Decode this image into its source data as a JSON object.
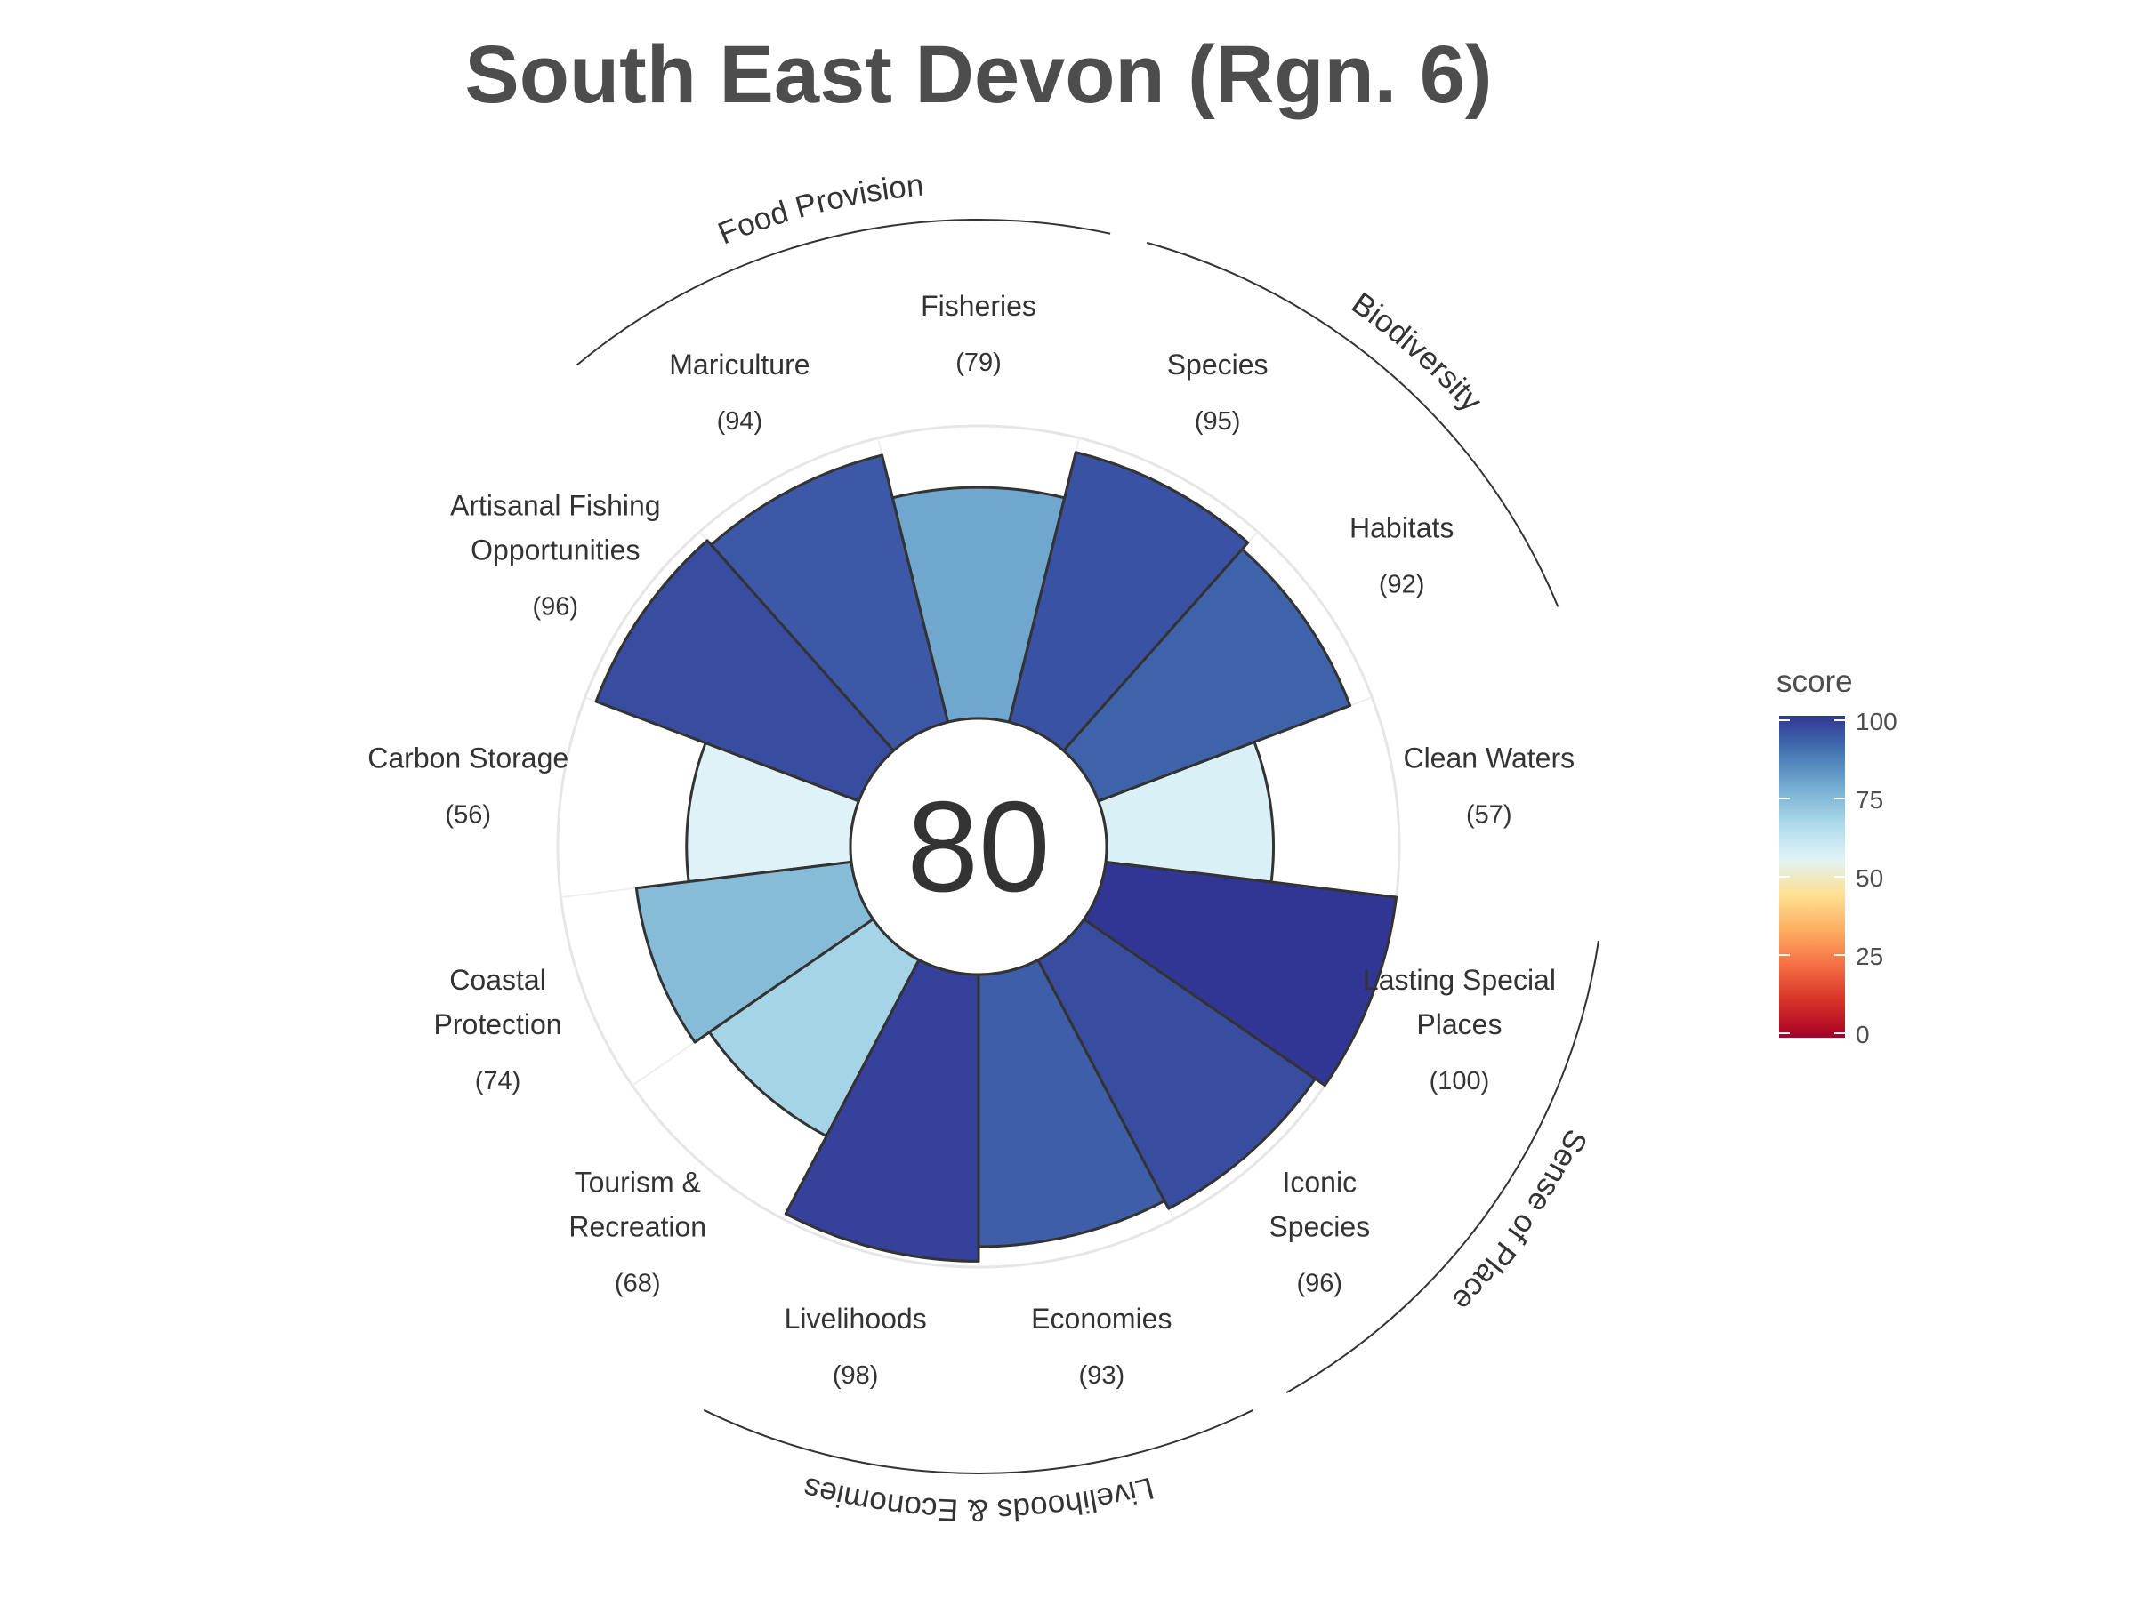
{
  "chart_data": {
    "type": "rose",
    "title": "South East Devon (Rgn. 6)",
    "overall_score": "80",
    "max_score": 100,
    "rlim": [
      0,
      100
    ],
    "grid": true,
    "petals": [
      {
        "label": "Fisheries",
        "score": 79,
        "goal": "Food Provision"
      },
      {
        "label": "Mariculture",
        "score": 94,
        "goal": "Food Provision"
      },
      {
        "label": "Artisanal Fishing Opportunities",
        "score": 96,
        "goal": ""
      },
      {
        "label": "Carbon Storage",
        "score": 56,
        "goal": ""
      },
      {
        "label": "Coastal Protection",
        "score": 74,
        "goal": ""
      },
      {
        "label": "Tourism & Recreation",
        "score": 68,
        "goal": ""
      },
      {
        "label": "Livelihoods",
        "score": 98,
        "goal": "Livelihoods & Economies"
      },
      {
        "label": "Economies",
        "score": 93,
        "goal": "Livelihoods & Economies"
      },
      {
        "label": "Iconic Species",
        "score": 96,
        "goal": "Sense of Place"
      },
      {
        "label": "Lasting Special Places",
        "score": 100,
        "goal": "Sense of Place"
      },
      {
        "label": "Clean Waters",
        "score": 57,
        "goal": ""
      },
      {
        "label": "Habitats",
        "score": 92,
        "goal": "Biodiversity"
      },
      {
        "label": "Species",
        "score": 95,
        "goal": "Biodiversity"
      }
    ],
    "goal_labels": [
      "Food Provision",
      "Biodiversity",
      "Sense of Place",
      "Livelihoods & Economies"
    ],
    "legend": {
      "title": "score",
      "ticks": [
        "100",
        "75",
        "50",
        "25",
        "0"
      ],
      "placement": "right",
      "colors": [
        "#a50026",
        "#d73027",
        "#f46d43",
        "#fdae61",
        "#fee090",
        "#e0f3f8",
        "#abd9e9",
        "#74add1",
        "#4575b4",
        "#313695"
      ]
    }
  }
}
